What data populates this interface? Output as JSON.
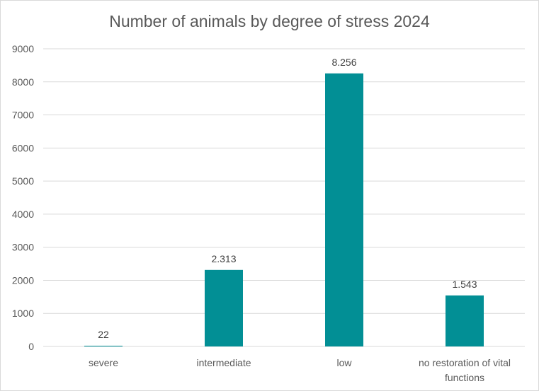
{
  "chart_data": {
    "type": "bar",
    "title": "Number of animals by degree of stress 2024",
    "categories": [
      "severe",
      "intermediate",
      "low",
      "no restoration of vital functions"
    ],
    "category_lines": [
      [
        "severe"
      ],
      [
        "intermediate"
      ],
      [
        "low"
      ],
      [
        "no restoration of vital",
        "functions"
      ]
    ],
    "values": [
      22,
      2313,
      8256,
      1543
    ],
    "data_labels": [
      "22",
      "2.313",
      "8.256",
      "1.543"
    ],
    "ylim": [
      0,
      9000
    ],
    "yticks": [
      0,
      1000,
      2000,
      3000,
      4000,
      5000,
      6000,
      7000,
      8000,
      9000
    ],
    "xlabel": "",
    "ylabel": "",
    "grid": true,
    "legend": "none",
    "bar_color": "#028f95"
  }
}
